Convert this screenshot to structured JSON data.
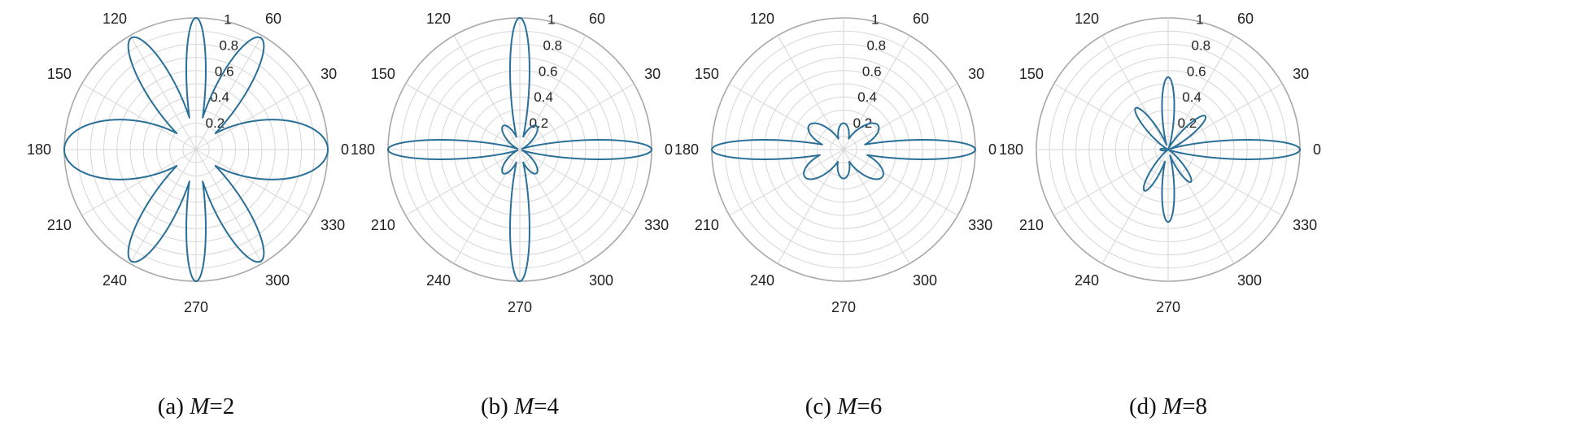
{
  "colors": {
    "line": "#2a6f98",
    "grid": "#d6d6d6",
    "outer": "#a8a8a8"
  },
  "chart_data": [
    {
      "type": "polar",
      "caption": {
        "prefix": "(a) ",
        "var": "M",
        "suffix": "=2"
      },
      "theta_ticks": [
        "0",
        "30",
        "60",
        "90",
        "120",
        "150",
        "180",
        "210",
        "240",
        "270",
        "300",
        "330"
      ],
      "r_ticks": [
        "0.2",
        "0.4",
        "0.6",
        "0.8",
        "1"
      ],
      "rlim": [
        0,
        1
      ],
      "series": [
        {
          "lobes": [
            {
              "center_deg": 0,
              "amplitude": 1.0,
              "half_width_deg": 22
            },
            {
              "center_deg": 180,
              "amplitude": 1.0,
              "half_width_deg": 22
            },
            {
              "center_deg": 60,
              "amplitude": 0.98,
              "half_width_deg": 11
            },
            {
              "center_deg": 120,
              "amplitude": 0.98,
              "half_width_deg": 11
            },
            {
              "center_deg": 240,
              "amplitude": 0.98,
              "half_width_deg": 11
            },
            {
              "center_deg": 300,
              "amplitude": 0.98,
              "half_width_deg": 11
            },
            {
              "center_deg": 90,
              "amplitude": 1.0,
              "half_width_deg": 7
            },
            {
              "center_deg": 270,
              "amplitude": 1.0,
              "half_width_deg": 7
            }
          ]
        }
      ]
    },
    {
      "type": "polar",
      "caption": {
        "prefix": "(b) ",
        "var": "M",
        "suffix": "=4"
      },
      "theta_ticks": [
        "0",
        "30",
        "60",
        "90",
        "120",
        "150",
        "180",
        "210",
        "240",
        "270",
        "300",
        "330"
      ],
      "r_ticks": [
        "0.2",
        "0.4",
        "0.6",
        "0.8",
        "1"
      ],
      "rlim": [
        0,
        1
      ],
      "series": [
        {
          "lobes": [
            {
              "center_deg": 0,
              "amplitude": 1.0,
              "half_width_deg": 7
            },
            {
              "center_deg": 180,
              "amplitude": 1.0,
              "half_width_deg": 7
            },
            {
              "center_deg": 90,
              "amplitude": 1.0,
              "half_width_deg": 7
            },
            {
              "center_deg": 270,
              "amplitude": 1.0,
              "half_width_deg": 7
            },
            {
              "center_deg": 55,
              "amplitude": 0.22,
              "half_width_deg": 16
            },
            {
              "center_deg": 125,
              "amplitude": 0.22,
              "half_width_deg": 16
            },
            {
              "center_deg": 235,
              "amplitude": 0.22,
              "half_width_deg": 16
            },
            {
              "center_deg": 305,
              "amplitude": 0.22,
              "half_width_deg": 16
            }
          ]
        }
      ]
    },
    {
      "type": "polar",
      "caption": {
        "prefix": "(c) ",
        "var": "M",
        "suffix": "=6"
      },
      "theta_ticks": [
        "0",
        "30",
        "60",
        "90",
        "120",
        "150",
        "180",
        "210",
        "240",
        "270",
        "300",
        "330"
      ],
      "r_ticks": [
        "0.2",
        "0.4",
        "0.6",
        "0.8",
        "1"
      ],
      "rlim": [
        0,
        1
      ],
      "series": [
        {
          "lobes": [
            {
              "center_deg": 0,
              "amplitude": 1.0,
              "half_width_deg": 7
            },
            {
              "center_deg": 180,
              "amplitude": 1.0,
              "half_width_deg": 7
            },
            {
              "center_deg": 35,
              "amplitude": 0.32,
              "half_width_deg": 19
            },
            {
              "center_deg": 145,
              "amplitude": 0.32,
              "half_width_deg": 19
            },
            {
              "center_deg": 215,
              "amplitude": 0.36,
              "half_width_deg": 19
            },
            {
              "center_deg": 325,
              "amplitude": 0.36,
              "half_width_deg": 19
            },
            {
              "center_deg": 90,
              "amplitude": 0.2,
              "half_width_deg": 20
            },
            {
              "center_deg": 270,
              "amplitude": 0.22,
              "half_width_deg": 20
            }
          ]
        }
      ]
    },
    {
      "type": "polar",
      "caption": {
        "prefix": "(d) ",
        "var": "M",
        "suffix": "=8"
      },
      "theta_ticks": [
        "0",
        "30",
        "60",
        "90",
        "120",
        "150",
        "180",
        "210",
        "240",
        "270",
        "300",
        "330"
      ],
      "r_ticks": [
        "0.2",
        "0.4",
        "0.6",
        "0.8",
        "1"
      ],
      "rlim": [
        0,
        1
      ],
      "series": [
        {
          "lobes": [
            {
              "center_deg": 0,
              "amplitude": 1.0,
              "half_width_deg": 7
            },
            {
              "center_deg": 90,
              "amplitude": 0.55,
              "half_width_deg": 8
            },
            {
              "center_deg": 270,
              "amplitude": 0.55,
              "half_width_deg": 8
            },
            {
              "center_deg": 128,
              "amplitude": 0.4,
              "half_width_deg": 9
            },
            {
              "center_deg": 240,
              "amplitude": 0.36,
              "half_width_deg": 9
            },
            {
              "center_deg": 42,
              "amplitude": 0.38,
              "half_width_deg": 9
            },
            {
              "center_deg": 305,
              "amplitude": 0.3,
              "half_width_deg": 9
            },
            {
              "center_deg": 180,
              "amplitude": 0.06,
              "half_width_deg": 12
            }
          ]
        }
      ]
    }
  ]
}
